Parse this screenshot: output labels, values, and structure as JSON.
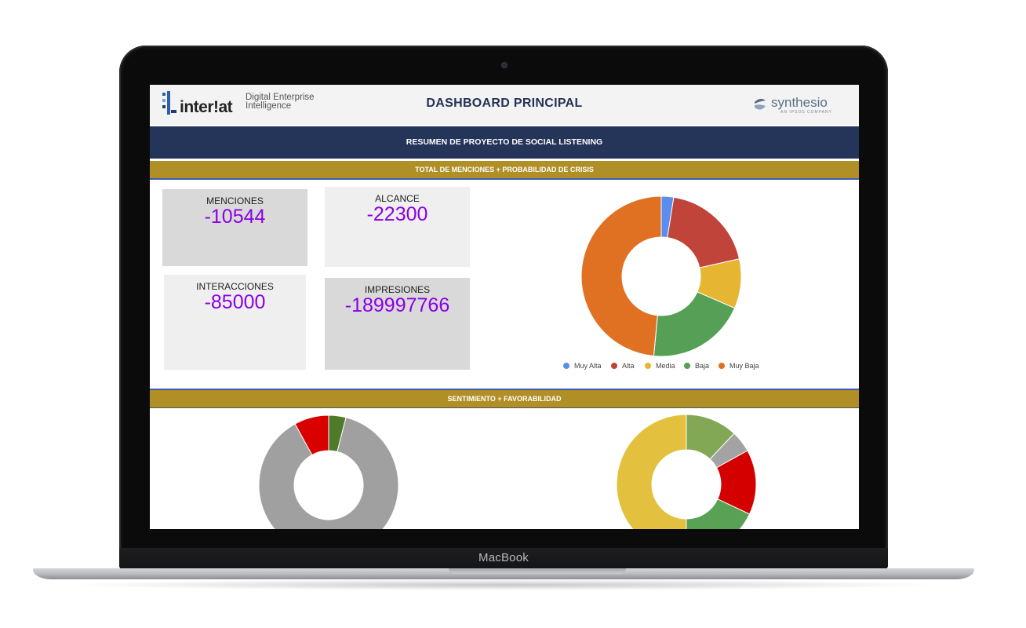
{
  "device": {
    "brand": "MacBook"
  },
  "header": {
    "left_logo": {
      "word": "inter!at",
      "subtitle_line1": "Digital Enterprise",
      "subtitle_line2": "Intelligence"
    },
    "title": "DASHBOARD PRINCIPAL",
    "right_logo": {
      "word": "synthesio",
      "subtitle": "AN IPSOS COMPANY"
    }
  },
  "summary_band": "RESUMEN DE PROYECTO DE SOCIAL LISTENING",
  "section1": {
    "title": "TOTAL DE MENCIONES + PROBABILIDAD DE CRISIS",
    "kpis": [
      {
        "label": "MENCIONES",
        "value": "-10544"
      },
      {
        "label": "ALCANCE",
        "value": "-22300"
      },
      {
        "label": "INTERACCIONES",
        "value": "-85000"
      },
      {
        "label": "IMPRESIONES",
        "value": "-189997766"
      }
    ]
  },
  "section2": {
    "title": "SENTIMIENTO + FAVORABILIDAD"
  },
  "chart_data": [
    {
      "type": "pie",
      "categories": [
        "Muy Alta",
        "Alta",
        "Media",
        "Baja",
        "Muy Baja"
      ],
      "values": [
        2.5,
        19,
        10,
        20,
        48.5
      ],
      "colors": [
        "#5b8def",
        "#c0443a",
        "#e6b531",
        "#55a056",
        "#e07022"
      ],
      "legend": "bottom",
      "donut": true
    },
    {
      "type": "pie",
      "values": [
        4,
        88,
        8
      ],
      "colors": [
        "#4e7a2a",
        "#a0a0a0",
        "#d90000"
      ],
      "donut": true
    },
    {
      "type": "pie",
      "values": [
        12,
        5,
        15,
        18,
        50
      ],
      "colors": [
        "#82a855",
        "#a3a3a3",
        "#d40000",
        "#59a255",
        "#e3c13e"
      ],
      "donut": true
    }
  ]
}
